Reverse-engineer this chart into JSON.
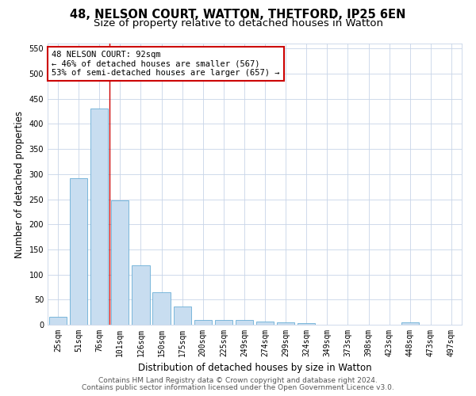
{
  "title_line1": "48, NELSON COURT, WATTON, THETFORD, IP25 6EN",
  "title_line2": "Size of property relative to detached houses in Watton",
  "xlabel": "Distribution of detached houses by size in Watton",
  "ylabel": "Number of detached properties",
  "categories": [
    "25sqm",
    "51sqm",
    "76sqm",
    "101sqm",
    "126sqm",
    "150sqm",
    "175sqm",
    "200sqm",
    "225sqm",
    "249sqm",
    "274sqm",
    "299sqm",
    "324sqm",
    "349sqm",
    "373sqm",
    "398sqm",
    "423sqm",
    "448sqm",
    "473sqm",
    "497sqm"
  ],
  "values": [
    15,
    292,
    430,
    248,
    118,
    65,
    37,
    10,
    10,
    10,
    6,
    4,
    3,
    0,
    0,
    0,
    0,
    4,
    0,
    0
  ],
  "bar_color": "#c8ddf0",
  "bar_edge_color": "#6aaed6",
  "vline_color": "#cc0000",
  "vline_x_index": 2.5,
  "annotation_text": "48 NELSON COURT: 92sqm\n← 46% of detached houses are smaller (567)\n53% of semi-detached houses are larger (657) →",
  "annotation_box_facecolor": "#ffffff",
  "annotation_box_edgecolor": "#cc0000",
  "ylim": [
    0,
    560
  ],
  "yticks": [
    0,
    50,
    100,
    150,
    200,
    250,
    300,
    350,
    400,
    450,
    500,
    550
  ],
  "background_color": "#ffffff",
  "grid_color": "#c8d4e8",
  "footer_line1": "Contains HM Land Registry data © Crown copyright and database right 2024.",
  "footer_line2": "Contains public sector information licensed under the Open Government Licence v3.0.",
  "title_fontsize": 10.5,
  "subtitle_fontsize": 9.5,
  "axis_label_fontsize": 8.5,
  "tick_fontsize": 7,
  "annotation_fontsize": 7.5,
  "footer_fontsize": 6.5
}
